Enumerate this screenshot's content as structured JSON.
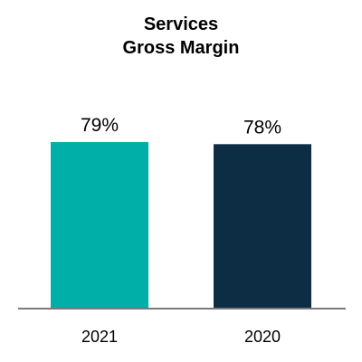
{
  "chart_data": {
    "type": "bar",
    "title_lines": [
      "Services",
      "Gross Margin"
    ],
    "categories": [
      "2021",
      "2020"
    ],
    "values": [
      79,
      78
    ],
    "value_labels": [
      "79%",
      "78%"
    ],
    "bar_colors": [
      "#00b0a8",
      "#0d2d44"
    ],
    "axis_color": "#7a7a7a",
    "xlabel": "",
    "ylabel": "",
    "grid": false,
    "legend": "none"
  }
}
